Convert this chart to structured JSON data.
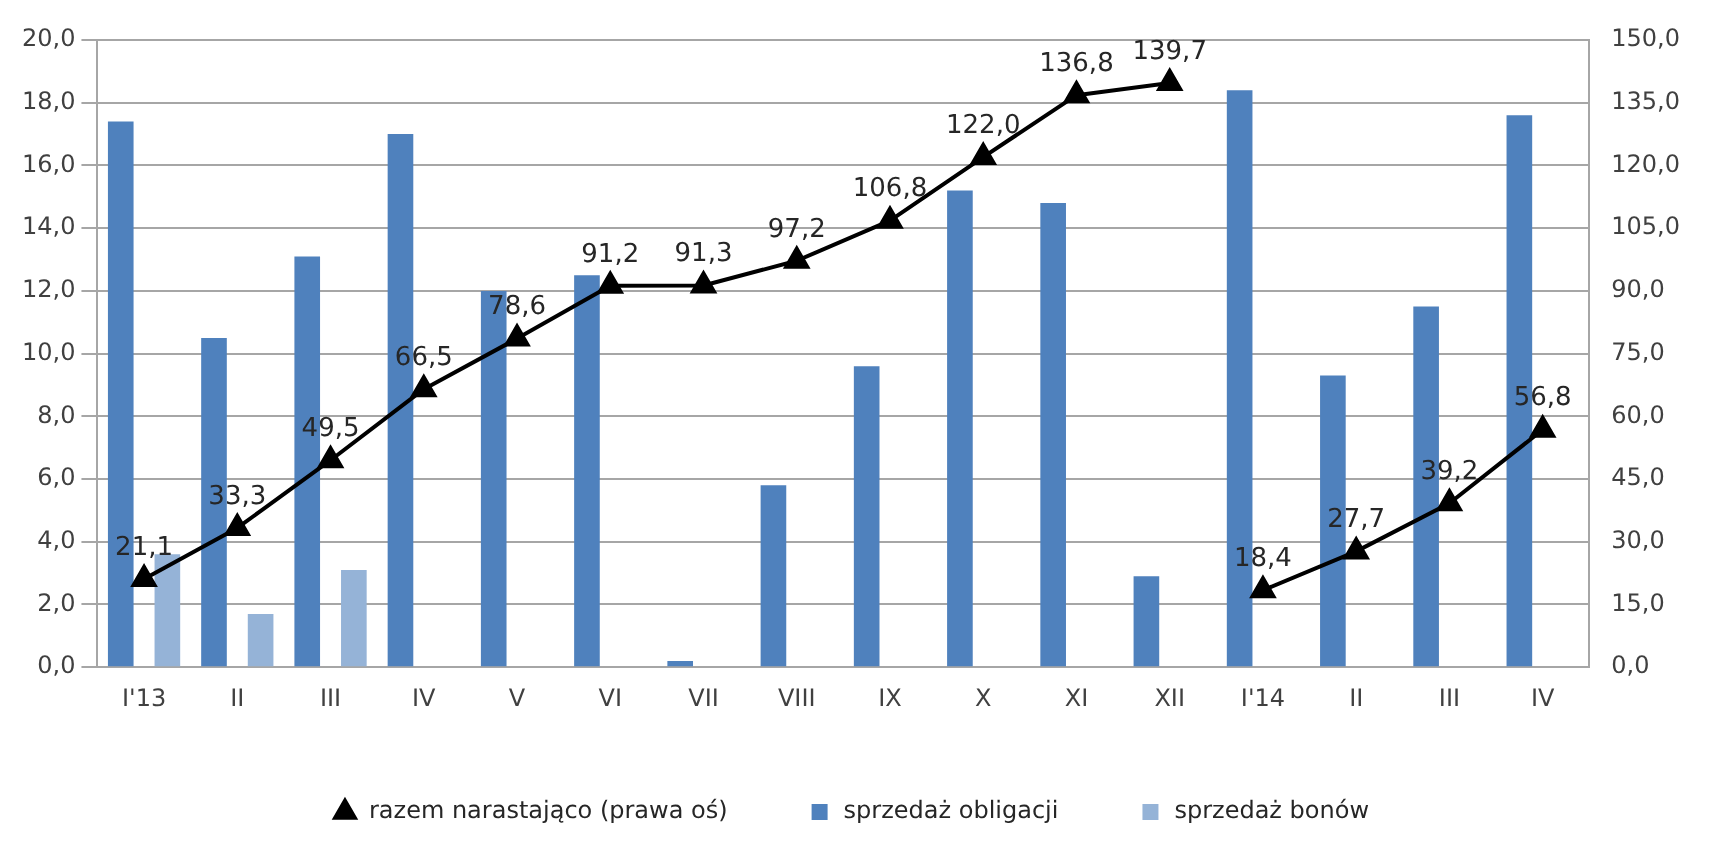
{
  "chart_data": {
    "type": "bar",
    "categories": [
      "I'13",
      "II",
      "III",
      "IV",
      "V",
      "VI",
      "VII",
      "VIII",
      "IX",
      "X",
      "XI",
      "XII",
      "I'14",
      "II",
      "III",
      "IV"
    ],
    "series": [
      {
        "name": "sprzedaż obligacji",
        "color": "#4f81bd",
        "values": [
          17.4,
          10.5,
          13.1,
          17.0,
          12.0,
          12.5,
          0.2,
          5.8,
          9.6,
          15.2,
          14.8,
          2.9,
          18.4,
          9.3,
          11.5,
          17.6
        ]
      },
      {
        "name": "sprzedaż bonów",
        "color": "#95b3d7",
        "values": [
          3.6,
          1.7,
          3.1,
          0,
          0,
          0,
          0,
          0,
          0,
          0,
          0,
          0,
          0,
          0,
          0,
          0
        ]
      },
      {
        "name": "razem narastająco (prawa oś)",
        "type": "line",
        "axis": "y2",
        "color": "#000000",
        "marker": "triangle",
        "values": [
          21.1,
          33.3,
          49.5,
          66.5,
          78.6,
          91.2,
          91.3,
          97.2,
          106.8,
          122.0,
          136.8,
          139.7,
          null,
          null,
          null,
          null
        ],
        "value_labels": [
          "21,1",
          "33,3",
          "49,5",
          "66,5",
          "78,6",
          "91,2",
          "91,3",
          "97,2",
          "106,8",
          "122,0",
          "136,8",
          "139,7",
          null,
          null,
          null,
          null
        ]
      },
      {
        "type": "line",
        "axis": "y2",
        "color": "#000000",
        "marker": "triangle",
        "values": [
          null,
          null,
          null,
          null,
          null,
          null,
          null,
          null,
          null,
          null,
          null,
          null,
          18.4,
          27.7,
          39.2,
          56.8
        ],
        "value_labels": [
          null,
          null,
          null,
          null,
          null,
          null,
          null,
          null,
          null,
          null,
          null,
          null,
          "18,4",
          "27,7",
          "39,2",
          "56,8"
        ]
      }
    ],
    "ylim": [
      0,
      20
    ],
    "yticks": [
      {
        "value": 0,
        "label": "0,0"
      },
      {
        "value": 2,
        "label": "2,0"
      },
      {
        "value": 4,
        "label": "4,0"
      },
      {
        "value": 6,
        "label": "6,0"
      },
      {
        "value": 8,
        "label": "8,0"
      },
      {
        "value": 10,
        "label": "10,0"
      },
      {
        "value": 12,
        "label": "12,0"
      },
      {
        "value": 14,
        "label": "14,0"
      },
      {
        "value": 16,
        "label": "16,0"
      },
      {
        "value": 18,
        "label": "18,0"
      },
      {
        "value": 20,
        "label": "20,0"
      }
    ],
    "y2lim": [
      0,
      150
    ],
    "y2ticks": [
      {
        "value": 0,
        "label": "0,0"
      },
      {
        "value": 15,
        "label": "15,0"
      },
      {
        "value": 30,
        "label": "30,0"
      },
      {
        "value": 45,
        "label": "45,0"
      },
      {
        "value": 60,
        "label": "60,0"
      },
      {
        "value": 75,
        "label": "75,0"
      },
      {
        "value": 90,
        "label": "90,0"
      },
      {
        "value": 105,
        "label": "105,0"
      },
      {
        "value": 120,
        "label": "120,0"
      },
      {
        "value": 135,
        "label": "135,0"
      },
      {
        "value": 150,
        "label": "150,0"
      }
    ],
    "grid": "y",
    "legend": "bottom"
  }
}
